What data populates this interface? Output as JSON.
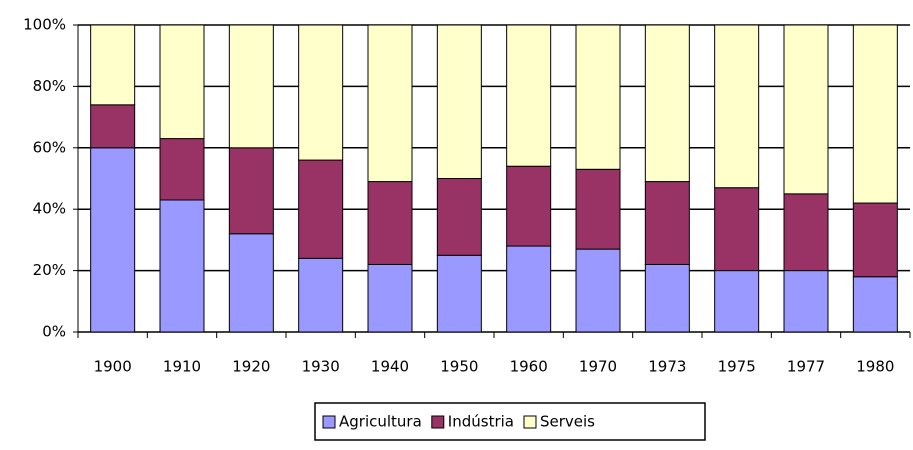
{
  "chart_data": {
    "type": "bar",
    "stacked": true,
    "categories": [
      "1900",
      "1910",
      "1920",
      "1930",
      "1940",
      "1950",
      "1960",
      "1970",
      "1973",
      "1975",
      "1977",
      "1980"
    ],
    "series": [
      {
        "name": "Agricultura",
        "color": "#9999ff",
        "values": [
          60,
          43,
          32,
          24,
          22,
          25,
          28,
          27,
          22,
          20,
          20,
          18
        ]
      },
      {
        "name": "Indústria",
        "color": "#993366",
        "values": [
          14,
          20,
          28,
          32,
          27,
          25,
          26,
          26,
          27,
          27,
          25,
          24
        ]
      },
      {
        "name": "Serveis",
        "color": "#ffffcc",
        "values": [
          26,
          37,
          40,
          44,
          51,
          50,
          46,
          47,
          51,
          53,
          55,
          58
        ]
      }
    ],
    "ylim": [
      0,
      100
    ],
    "yticks": [
      {
        "value": 0,
        "label": "0%"
      },
      {
        "value": 20,
        "label": "20%"
      },
      {
        "value": 40,
        "label": "40%"
      },
      {
        "value": 60,
        "label": "60%"
      },
      {
        "value": 80,
        "label": "80%"
      },
      {
        "value": 100,
        "label": "100%"
      }
    ],
    "grid": true,
    "legend": "bottom"
  }
}
